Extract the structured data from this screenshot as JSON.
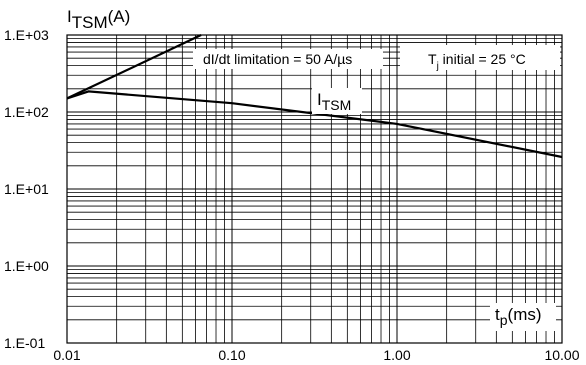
{
  "chart_data": {
    "type": "line",
    "x_scale": "log",
    "y_scale": "log",
    "xlim": [
      0.01,
      10
    ],
    "ylim": [
      0.1,
      1000
    ],
    "grid": true,
    "x_tick_labels": [
      "0.01",
      "0.10",
      "1.00",
      "10.00"
    ],
    "y_tick_labels": [
      "1.E+03",
      "1.E+02",
      "1.E+01",
      "1.E+00",
      "1.E-01"
    ],
    "y_axis_title": {
      "main": "I",
      "sub": "TSM",
      "suffix": "(A)"
    },
    "x_axis_title": {
      "main": "t",
      "sub": "p",
      "suffix": "(ms)"
    },
    "series": [
      {
        "name_main": "I",
        "name_sub": "TSM",
        "x": [
          0.01,
          0.0135,
          0.1,
          1,
          10
        ],
        "y": [
          150,
          185,
          130,
          70,
          26
        ]
      },
      {
        "name": "dI/dt limitation",
        "x": [
          0.01,
          0.065
        ],
        "y": [
          150,
          1000
        ]
      }
    ],
    "annotations": {
      "didt_text": "dI/dt limitation = 50 A/µs",
      "tj_main": "T",
      "tj_sub": "j",
      "tj_rest": " initial = 25 °C"
    }
  }
}
